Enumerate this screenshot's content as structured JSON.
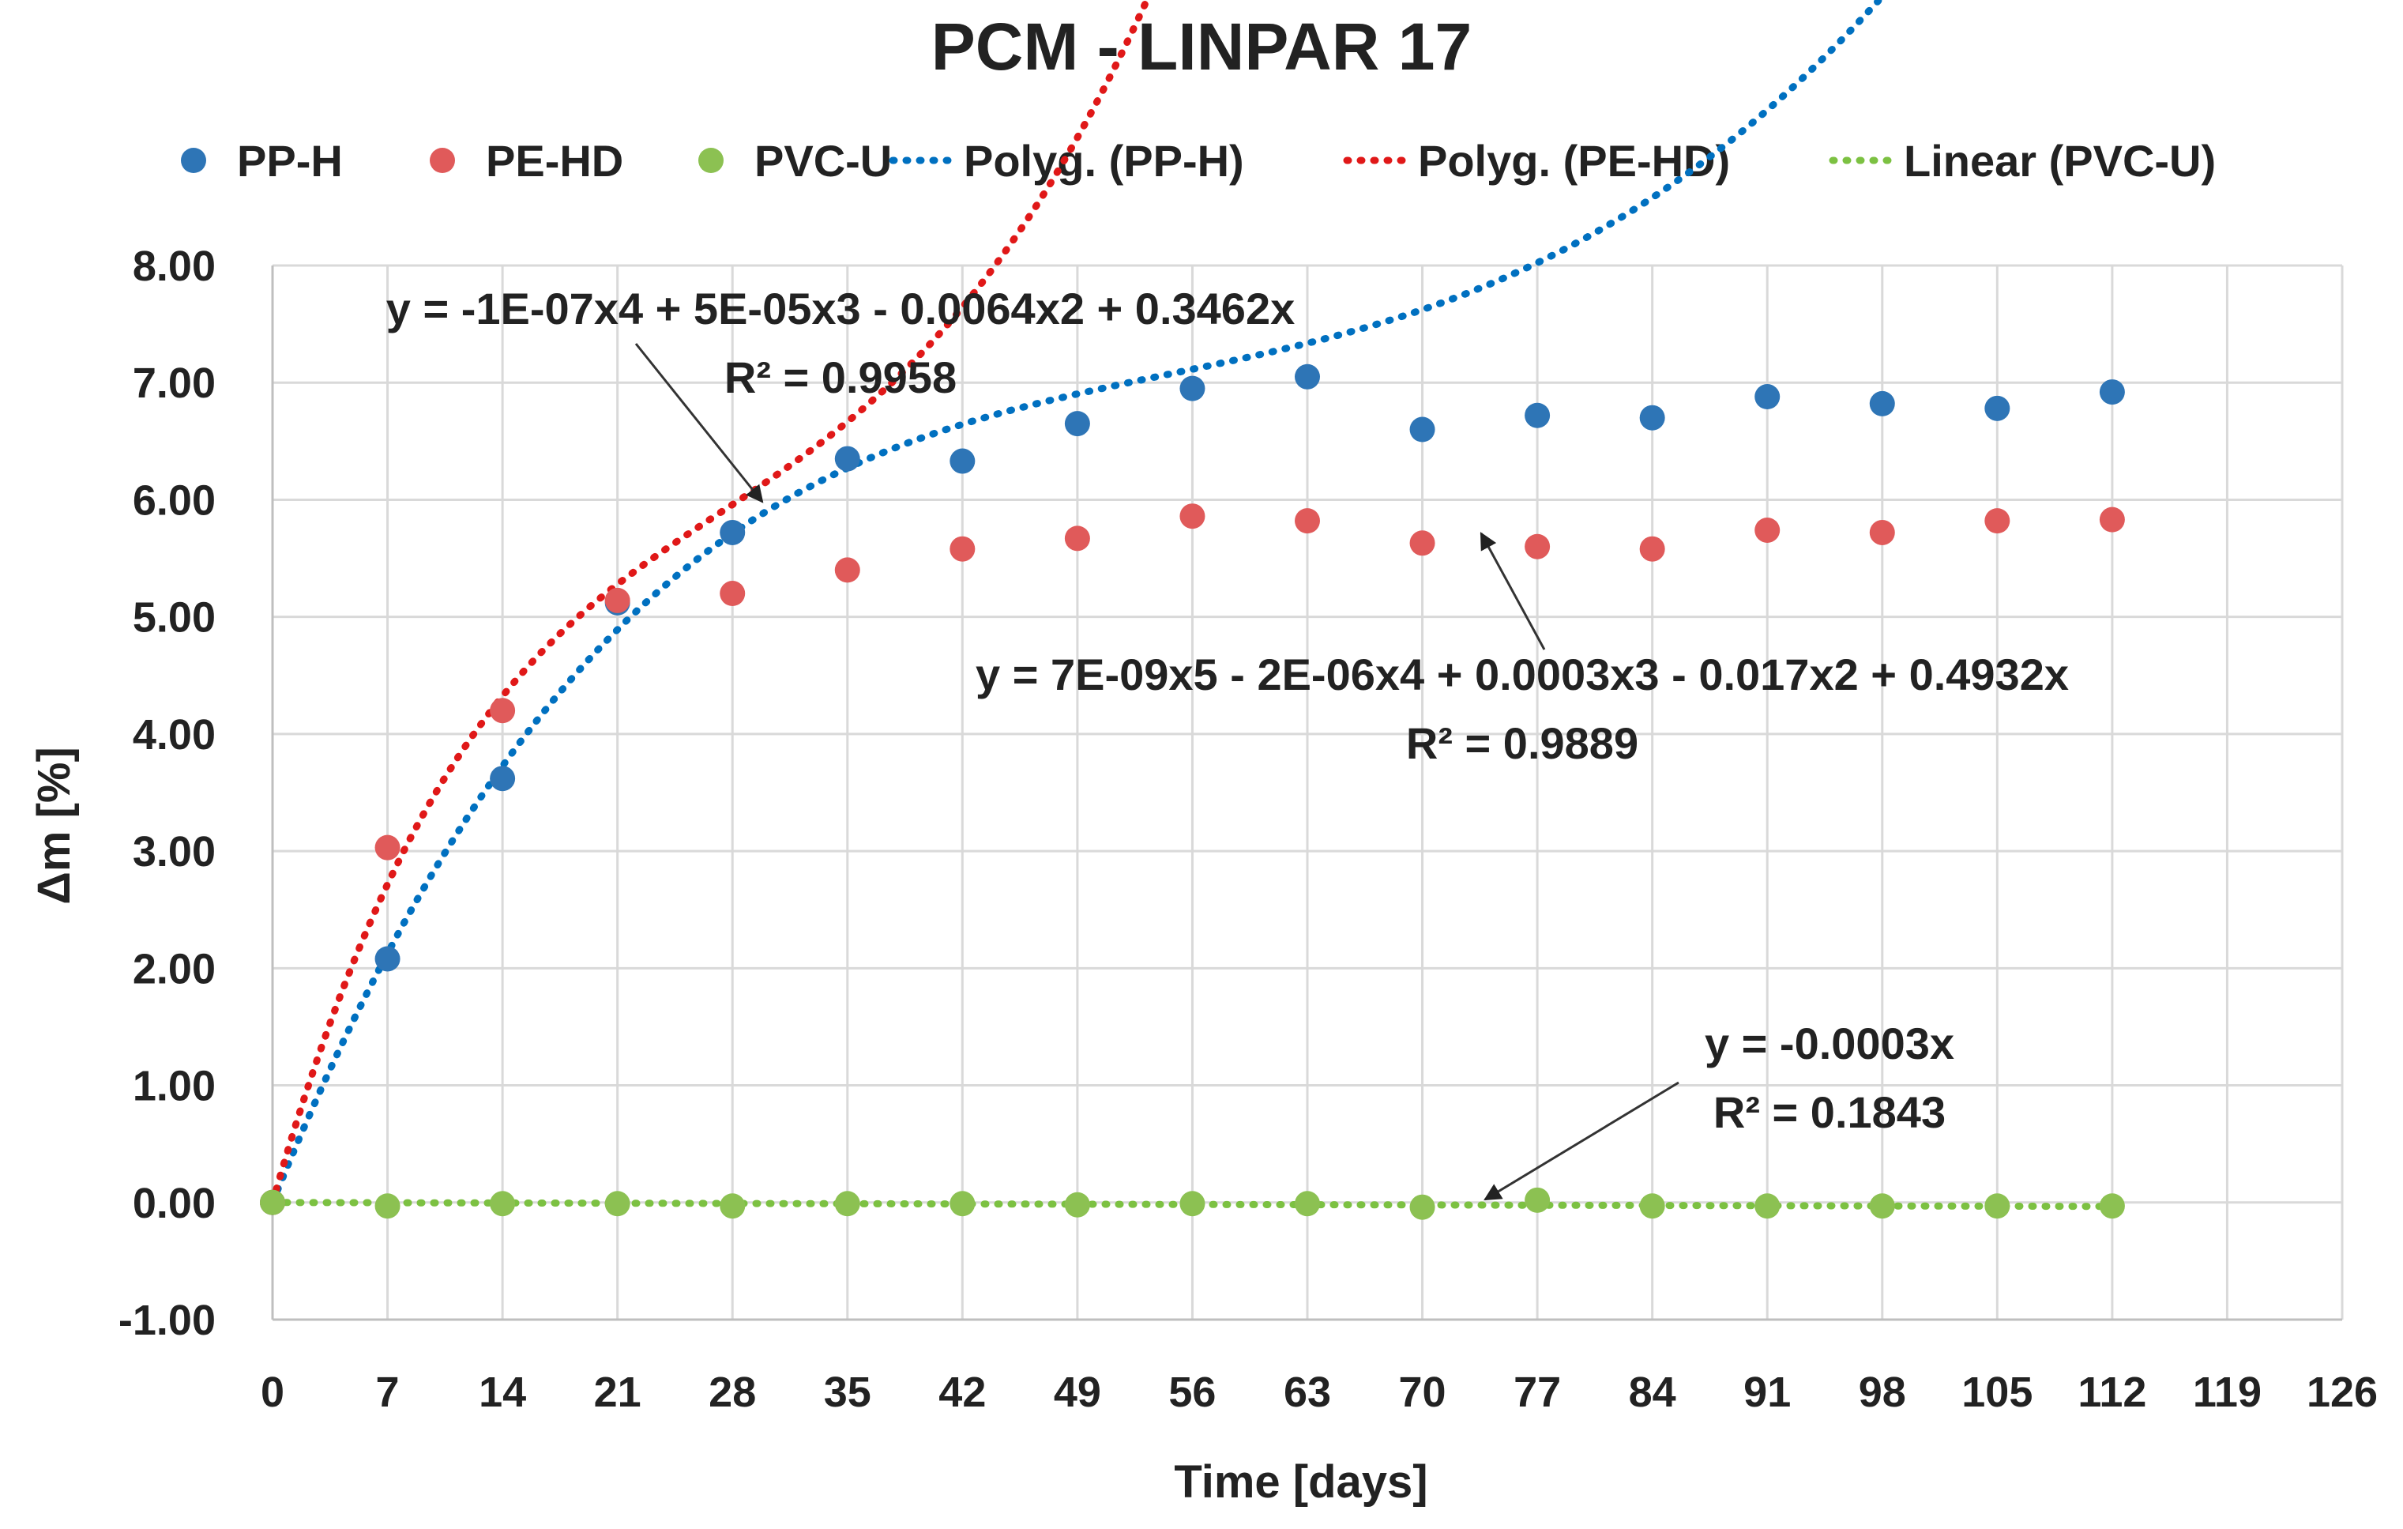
{
  "chart_data": {
    "type": "scatter",
    "title": "PCM - LINPAR 17",
    "xlabel": "Time [days]",
    "ylabel": "Δm [%]",
    "xlim": [
      0,
      126
    ],
    "ylim": [
      -1,
      8
    ],
    "x_ticks": [
      0,
      7,
      14,
      21,
      28,
      35,
      42,
      49,
      56,
      63,
      70,
      77,
      84,
      91,
      98,
      105,
      112,
      119,
      126
    ],
    "y_ticks": [
      -1,
      0,
      1,
      2,
      3,
      4,
      5,
      6,
      7,
      8
    ],
    "y_tick_labels": [
      "-1.00",
      "0.00",
      "1.00",
      "2.00",
      "3.00",
      "4.00",
      "5.00",
      "6.00",
      "7.00",
      "8.00"
    ],
    "grid": true,
    "legend_position": "top",
    "series": [
      {
        "name": "PP-H",
        "color": "#2e75b6",
        "x": [
          0,
          7,
          14,
          21,
          28,
          35,
          42,
          49,
          56,
          63,
          70,
          77,
          84,
          91,
          98,
          105,
          112
        ],
        "values": [
          0.0,
          2.08,
          3.62,
          5.12,
          5.72,
          6.35,
          6.33,
          6.65,
          6.95,
          7.05,
          6.6,
          6.72,
          6.7,
          6.88,
          6.82,
          6.78,
          6.92
        ]
      },
      {
        "name": "PE-HD",
        "color": "#e05a5a",
        "x": [
          0,
          7,
          14,
          21,
          28,
          35,
          42,
          49,
          56,
          63,
          70,
          77,
          84,
          91,
          98,
          105,
          112
        ],
        "values": [
          0.0,
          3.03,
          4.2,
          5.14,
          5.2,
          5.4,
          5.58,
          5.67,
          5.86,
          5.82,
          5.63,
          5.6,
          5.58,
          5.74,
          5.72,
          5.82,
          5.83
        ]
      },
      {
        "name": "PVC-U",
        "color": "#8cc152",
        "x": [
          0,
          7,
          14,
          21,
          28,
          35,
          42,
          49,
          56,
          63,
          70,
          77,
          84,
          91,
          98,
          105,
          112
        ],
        "values": [
          0.0,
          -0.03,
          -0.01,
          -0.01,
          -0.03,
          -0.01,
          -0.01,
          -0.02,
          -0.01,
          -0.01,
          -0.04,
          0.02,
          -0.03,
          -0.03,
          -0.03,
          -0.03,
          -0.03
        ]
      }
    ],
    "trendlines": [
      {
        "name": "Polyg. (PP-H)",
        "color": "#0070c0",
        "kind": "poly",
        "coefficients": [
          0,
          0.3462,
          -0.0064,
          5e-05,
          -1e-07
        ],
        "equation": "y = -1E-07x4 + 5E-05x3 - 0.0064x2 + 0.3462x",
        "r2": "R² = 0.9958"
      },
      {
        "name": "Polyg. (PE-HD)",
        "color": "#e01818",
        "kind": "poly",
        "coefficients": [
          0,
          0.4932,
          -0.017,
          0.0003,
          -2e-06,
          7e-09
        ],
        "equation": "y = 7E-09x5 - 2E-06x4 + 0.0003x3 - 0.017x2 + 0.4932x",
        "r2": "R² = 0.9889"
      },
      {
        "name": "Linear (PVC-U)",
        "color": "#7cc142",
        "kind": "linear",
        "coefficients": [
          0,
          -0.0003
        ],
        "equation": "y = -0.0003x",
        "r2": "R² = 0.1843"
      }
    ]
  }
}
